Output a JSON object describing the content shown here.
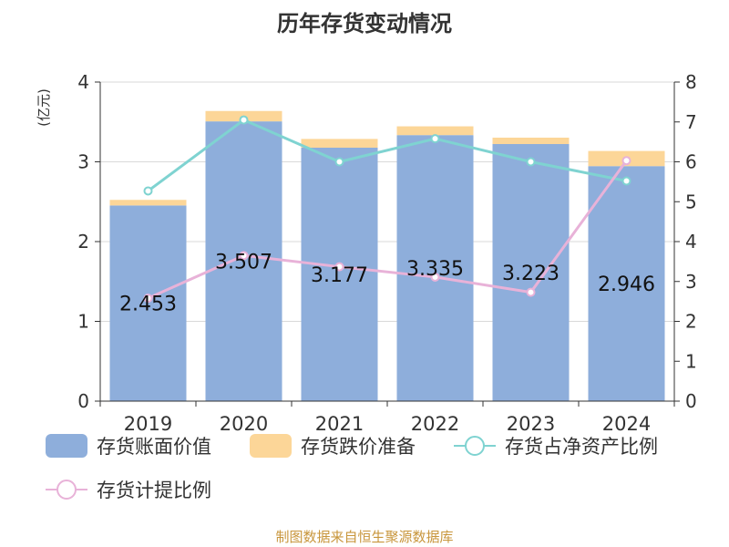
{
  "colors": {
    "book_value": "#8eaedb",
    "provision": "#fcd698",
    "ratio_net_assets": "#7fd3d1",
    "provision_ratio": "#e8b2d8",
    "unit_label": "#d83a3a",
    "source": "#c8963c"
  },
  "chart_data": {
    "type": "bar",
    "title": "历年存货变动情况",
    "unit_label": "(亿元)",
    "categories": [
      "2019",
      "2020",
      "2021",
      "2022",
      "2023",
      "2024"
    ],
    "ylim_left": [
      0,
      4
    ],
    "yticks_left": [
      "0",
      "1",
      "2",
      "3",
      "4"
    ],
    "ylim_right": [
      0,
      8
    ],
    "yticks_right": [
      "0",
      "1",
      "2",
      "3",
      "4",
      "5",
      "6",
      "7",
      "8"
    ],
    "grid": true,
    "series": [
      {
        "name": "存货账面价值",
        "kind": "bar",
        "axis": "left",
        "stack": "inv",
        "values": [
          2.453,
          3.507,
          3.177,
          3.335,
          3.223,
          2.946
        ],
        "labels": [
          "2.453",
          "3.507",
          "3.177",
          "3.335",
          "3.223",
          "2.946"
        ]
      },
      {
        "name": "存货跌价准备",
        "kind": "bar",
        "axis": "left",
        "stack": "inv",
        "values": [
          0.07,
          0.13,
          0.11,
          0.11,
          0.08,
          0.19
        ]
      },
      {
        "name": "存货占净资产比例",
        "kind": "line",
        "axis": "right",
        "values": [
          5.27,
          7.05,
          6.0,
          6.58,
          6.0,
          5.52
        ]
      },
      {
        "name": "存货计提比例",
        "kind": "line",
        "axis": "right",
        "values": [
          2.58,
          3.65,
          3.37,
          3.11,
          2.73,
          6.03
        ]
      }
    ]
  },
  "footer": {
    "source": "制图数据来自恒生聚源数据库"
  }
}
